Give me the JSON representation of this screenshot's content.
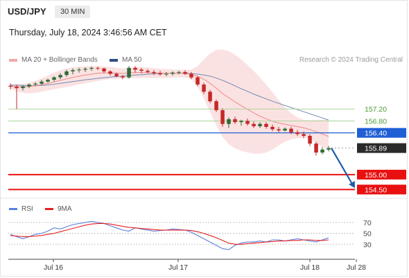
{
  "header": {
    "symbol": "USD/JPY",
    "timeframe": "30 MIN",
    "timestamp": "Thursday, July 18, 2024 3:46:56 AM CET"
  },
  "legend": {
    "ma20_label": "MA 20 + Bollinger Bands",
    "ma50_label": "MA 50",
    "credit": "Research © 2024 Trading Central"
  },
  "rsi_legend": {
    "rsi_label": "RSI",
    "ma_label": "9MA"
  },
  "colors": {
    "bull": "#2f6b37",
    "bear": "#c62828",
    "ma20": "#ef8f8f",
    "band": "#f7caca",
    "ma50": "#7f93b8",
    "resistance": "#a9d59a",
    "pivot": "#1f5fd6",
    "support": "#e81010",
    "current": "#2a2a2a",
    "rsi": "#5b7fe0",
    "rsi_ma": "#e61e1e",
    "arrow": "#1f5ba8"
  },
  "chart_data": [
    {
      "type": "candlestick",
      "title": "",
      "x_labels": [
        "Jul 16",
        "Jul 17",
        "Jul 18",
        "Jul 28"
      ],
      "ylim": [
        154.3,
        158.6
      ],
      "candles": [
        [
          157.98,
          158.06,
          157.86,
          157.95
        ],
        [
          157.95,
          158.02,
          157.2,
          157.9
        ],
        [
          157.9,
          158.0,
          157.82,
          157.96
        ],
        [
          157.96,
          158.06,
          157.9,
          158.02
        ],
        [
          158.02,
          158.1,
          157.96,
          158.05
        ],
        [
          158.05,
          158.18,
          158.0,
          158.12
        ],
        [
          158.12,
          158.22,
          158.08,
          158.18
        ],
        [
          158.18,
          158.3,
          158.12,
          158.26
        ],
        [
          158.26,
          158.4,
          158.2,
          158.34
        ],
        [
          158.34,
          158.52,
          158.28,
          158.46
        ],
        [
          158.46,
          158.56,
          158.36,
          158.5
        ],
        [
          158.5,
          158.58,
          158.42,
          158.52
        ],
        [
          158.52,
          158.6,
          158.44,
          158.55
        ],
        [
          158.55,
          158.62,
          158.48,
          158.58
        ],
        [
          158.58,
          158.62,
          158.5,
          158.56
        ],
        [
          158.56,
          158.58,
          158.4,
          158.46
        ],
        [
          158.46,
          158.5,
          158.32,
          158.38
        ],
        [
          158.38,
          158.42,
          158.26,
          158.3
        ],
        [
          158.3,
          158.34,
          158.2,
          158.26
        ],
        [
          158.26,
          158.64,
          158.22,
          158.58
        ],
        [
          158.58,
          158.64,
          158.42,
          158.52
        ],
        [
          158.52,
          158.58,
          158.4,
          158.48
        ],
        [
          158.48,
          158.54,
          158.4,
          158.44
        ],
        [
          158.44,
          158.5,
          158.34,
          158.4
        ],
        [
          158.4,
          158.48,
          158.32,
          158.36
        ],
        [
          158.36,
          158.44,
          158.3,
          158.38
        ],
        [
          158.38,
          158.46,
          158.32,
          158.42
        ],
        [
          158.42,
          158.48,
          158.36,
          158.44
        ],
        [
          158.44,
          158.5,
          158.34,
          158.38
        ],
        [
          158.38,
          158.44,
          158.2,
          158.26
        ],
        [
          158.26,
          158.3,
          157.96,
          158.02
        ],
        [
          158.02,
          158.08,
          157.7,
          157.78
        ],
        [
          157.78,
          157.84,
          157.4,
          157.46
        ],
        [
          157.46,
          157.52,
          157.1,
          157.16
        ],
        [
          157.16,
          157.22,
          156.6,
          156.7
        ],
        [
          156.7,
          156.92,
          156.56,
          156.86
        ],
        [
          156.86,
          156.94,
          156.7,
          156.76
        ],
        [
          156.76,
          156.84,
          156.64,
          156.8
        ],
        [
          156.8,
          156.88,
          156.64,
          156.7
        ],
        [
          156.7,
          156.78,
          156.56,
          156.62
        ],
        [
          156.62,
          156.76,
          156.56,
          156.7
        ],
        [
          156.7,
          156.76,
          156.54,
          156.6
        ],
        [
          156.6,
          156.68,
          156.46,
          156.52
        ],
        [
          156.52,
          156.6,
          156.42,
          156.48
        ],
        [
          156.48,
          156.58,
          156.44,
          156.54
        ],
        [
          156.54,
          156.6,
          156.36,
          156.42
        ],
        [
          156.42,
          156.5,
          156.3,
          156.36
        ],
        [
          156.36,
          156.44,
          156.22,
          156.3
        ],
        [
          156.3,
          156.36,
          155.96,
          156.04
        ],
        [
          156.04,
          156.1,
          155.64,
          155.74
        ],
        [
          155.74,
          155.92,
          155.68,
          155.84
        ],
        [
          155.84,
          155.96,
          155.78,
          155.89
        ]
      ],
      "ma20": [
        157.96,
        157.95,
        157.94,
        157.95,
        157.98,
        158.02,
        158.06,
        158.11,
        158.16,
        158.21,
        158.26,
        158.3,
        158.34,
        158.37,
        158.4,
        158.41,
        158.41,
        158.4,
        158.39,
        158.41,
        158.42,
        158.42,
        158.42,
        158.41,
        158.4,
        158.4,
        158.4,
        158.4,
        158.39,
        158.36,
        158.3,
        158.2,
        158.06,
        157.9,
        157.72,
        157.58,
        157.44,
        157.31,
        157.19,
        157.07,
        156.96,
        156.87,
        156.79,
        156.73,
        156.69,
        156.65,
        156.61,
        156.57,
        156.51,
        156.44,
        156.36,
        156.28
      ],
      "band_upper": [
        158.04,
        158.04,
        158.05,
        158.08,
        158.14,
        158.22,
        158.32,
        158.42,
        158.5,
        158.56,
        158.6,
        158.62,
        158.63,
        158.64,
        158.64,
        158.63,
        158.61,
        158.58,
        158.56,
        158.58,
        158.6,
        158.6,
        158.59,
        158.57,
        158.55,
        158.54,
        158.53,
        158.52,
        158.51,
        158.52,
        158.64,
        158.86,
        159.06,
        159.18,
        159.2,
        159.14,
        159.02,
        158.86,
        158.68,
        158.48,
        158.26,
        158.02,
        157.76,
        157.5,
        157.26,
        157.06,
        156.92,
        156.84,
        156.82,
        156.84,
        156.84,
        156.82
      ],
      "band_lower": [
        157.88,
        157.8,
        157.74,
        157.72,
        157.74,
        157.78,
        157.82,
        157.86,
        157.9,
        157.94,
        157.98,
        158.02,
        158.06,
        158.1,
        158.14,
        158.18,
        158.21,
        158.22,
        158.22,
        158.24,
        158.24,
        158.24,
        158.24,
        158.24,
        158.24,
        158.24,
        158.25,
        158.26,
        158.26,
        158.2,
        157.96,
        157.56,
        157.1,
        156.64,
        156.26,
        156.02,
        155.88,
        155.8,
        155.74,
        155.7,
        155.7,
        155.74,
        155.84,
        155.98,
        156.1,
        156.18,
        156.22,
        156.24,
        156.2,
        156.06,
        155.92,
        155.84
      ],
      "ma50": [
        158.0,
        157.99,
        157.99,
        157.98,
        157.98,
        157.99,
        158.01,
        158.03,
        158.06,
        158.09,
        158.12,
        158.15,
        158.18,
        158.2,
        158.23,
        158.25,
        158.27,
        158.29,
        158.3,
        158.32,
        158.34,
        158.35,
        158.37,
        158.38,
        158.39,
        158.4,
        158.4,
        158.4,
        158.4,
        158.39,
        158.37,
        158.34,
        158.3,
        158.24,
        158.16,
        158.07,
        157.98,
        157.88,
        157.79,
        157.7,
        157.62,
        157.54,
        157.46,
        157.39,
        157.32,
        157.25,
        157.18,
        157.11,
        157.04,
        156.97,
        156.9,
        156.83
      ],
      "levels": [
        {
          "label": "157.20",
          "value": 157.2,
          "kind": "resistance"
        },
        {
          "label": "156.80",
          "value": 156.8,
          "kind": "resistance"
        },
        {
          "label": "156.40",
          "value": 156.4,
          "kind": "pivot"
        },
        {
          "label": "155.89",
          "value": 155.89,
          "kind": "current"
        },
        {
          "label": "155.00",
          "value": 155.0,
          "kind": "support"
        },
        {
          "label": "154.50",
          "value": 154.5,
          "kind": "support"
        }
      ],
      "forecast_arrow": {
        "from": 155.89,
        "to": 154.55
      }
    },
    {
      "type": "line",
      "title": "",
      "series": [
        {
          "name": "RSI",
          "values": [
            48,
            44,
            40,
            44,
            48,
            50,
            54,
            60,
            58,
            62,
            66,
            68,
            70,
            72,
            70,
            68,
            64,
            60,
            56,
            54,
            60,
            58,
            56,
            54,
            55,
            56,
            58,
            57,
            56,
            52,
            46,
            40,
            34,
            28,
            22,
            20,
            28,
            32,
            34,
            34,
            36,
            34,
            38,
            38,
            36,
            38,
            40,
            38,
            36,
            34,
            38,
            42
          ]
        },
        {
          "name": "9MA",
          "values": [
            46,
            45,
            44,
            44,
            45,
            46,
            48,
            50,
            53,
            56,
            59,
            62,
            65,
            67,
            68,
            68,
            67,
            65,
            63,
            61,
            60,
            59,
            58,
            57,
            56,
            56,
            56,
            56,
            56,
            55,
            53,
            50,
            46,
            42,
            37,
            32,
            30,
            30,
            31,
            32,
            33,
            34,
            35,
            36,
            36,
            37,
            37,
            38,
            38,
            37,
            37,
            38
          ]
        }
      ],
      "ylim": [
        10,
        80
      ],
      "y_ticks": [
        70,
        50,
        30
      ]
    }
  ]
}
